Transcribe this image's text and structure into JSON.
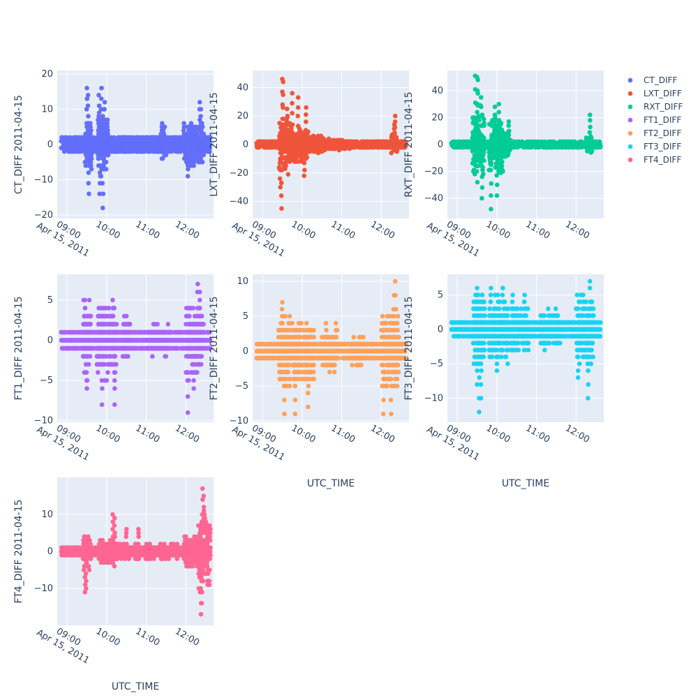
{
  "chart_data": {
    "type": "scatter",
    "x_date_label": "Apr 15, 2011",
    "x_ticks": [
      "09:00",
      "10:00",
      "11:00",
      "12:00"
    ],
    "x_tick_hours": [
      9,
      10,
      11,
      12
    ],
    "x_range_hours": [
      8.75,
      12.7
    ],
    "data_x_range_hours": [
      8.85,
      12.62
    ],
    "legend": {
      "placement": "top-right",
      "entries": [
        "CT_DIFF",
        "LXT_DIFF",
        "RXT_DIFF",
        "FT1_DIFF",
        "FT2_DIFF",
        "FT3_DIFF",
        "FT4_DIFF"
      ]
    },
    "panels": [
      {
        "series": "CT_DIFF",
        "color": "#636efa",
        "xlabel": "UTC_TIME",
        "ylabel": "CT_DIFF 2011-04-15",
        "ylim": [
          -21,
          21
        ],
        "y_ticks": [
          -20,
          -10,
          0,
          10,
          20
        ],
        "step": 1,
        "base_amp": 2,
        "highlights": [
          {
            "x": 9.5,
            "y": 16
          },
          {
            "x": 9.53,
            "y": 14
          },
          {
            "x": 9.55,
            "y": -14
          },
          {
            "x": 9.8,
            "y": 14
          },
          {
            "x": 9.82,
            "y": -14
          },
          {
            "x": 9.87,
            "y": 16
          },
          {
            "x": 9.9,
            "y": -18
          },
          {
            "x": 9.95,
            "y": 12
          },
          {
            "x": 10.02,
            "y": 7
          },
          {
            "x": 11.4,
            "y": 6
          },
          {
            "x": 11.95,
            "y": 6
          },
          {
            "x": 12.35,
            "y": 12
          },
          {
            "x": 12.38,
            "y": 10
          },
          {
            "x": 12.2,
            "y": -6
          },
          {
            "x": 12.05,
            "y": -9
          }
        ],
        "bursts": [
          {
            "x0": 9.45,
            "x1": 9.62,
            "amp": 8
          },
          {
            "x0": 9.78,
            "x1": 10.05,
            "amp": 10
          },
          {
            "x0": 10.4,
            "x1": 10.5,
            "amp": 3
          },
          {
            "x0": 11.35,
            "x1": 11.5,
            "amp": 5
          },
          {
            "x0": 11.95,
            "x1": 12.45,
            "amp": 7
          }
        ]
      },
      {
        "series": "LXT_DIFF",
        "color": "#ef553b",
        "xlabel": "UTC_TIME",
        "ylabel": "LXT_DIFF 2011-04-15",
        "ylim": [
          -52,
          52
        ],
        "y_ticks": [
          -40,
          -20,
          0,
          20,
          40
        ],
        "step": 1,
        "base_amp": 2,
        "highlights": [
          {
            "x": 9.5,
            "y": 46
          },
          {
            "x": 9.52,
            "y": 44
          },
          {
            "x": 9.45,
            "y": -30
          },
          {
            "x": 9.48,
            "y": -45
          },
          {
            "x": 9.62,
            "y": 25
          },
          {
            "x": 9.75,
            "y": 36
          },
          {
            "x": 9.9,
            "y": 33
          },
          {
            "x": 10.1,
            "y": 26
          },
          {
            "x": 10.05,
            "y": -22
          },
          {
            "x": 12.35,
            "y": 20
          },
          {
            "x": 12.33,
            "y": 14
          }
        ],
        "bursts": [
          {
            "x0": 9.42,
            "x1": 9.7,
            "amp": 22
          },
          {
            "x0": 9.7,
            "x1": 10.15,
            "amp": 15
          },
          {
            "x0": 10.15,
            "x1": 10.5,
            "amp": 7
          },
          {
            "x0": 10.5,
            "x1": 11.2,
            "amp": 4
          },
          {
            "x0": 12.25,
            "x1": 12.4,
            "amp": 8
          }
        ]
      },
      {
        "series": "RXT_DIFF",
        "color": "#00cc96",
        "xlabel": "UTC_TIME",
        "ylabel": "RXT_DIFF 2011-04-15",
        "ylim": [
          -55,
          55
        ],
        "y_ticks": [
          -40,
          -20,
          0,
          20,
          40
        ],
        "step": 1,
        "base_amp": 2,
        "highlights": [
          {
            "x": 9.45,
            "y": 51
          },
          {
            "x": 9.5,
            "y": 50
          },
          {
            "x": 9.52,
            "y": 48
          },
          {
            "x": 9.6,
            "y": 35
          },
          {
            "x": 9.62,
            "y": -40
          },
          {
            "x": 9.85,
            "y": -48
          },
          {
            "x": 9.95,
            "y": 28
          },
          {
            "x": 10.05,
            "y": 30
          },
          {
            "x": 10.0,
            "y": -38
          },
          {
            "x": 10.3,
            "y": 17
          },
          {
            "x": 12.35,
            "y": 22
          },
          {
            "x": 12.37,
            "y": -5
          }
        ],
        "bursts": [
          {
            "x0": 9.38,
            "x1": 9.68,
            "amp": 30
          },
          {
            "x0": 9.8,
            "x1": 10.15,
            "amp": 22
          },
          {
            "x0": 10.15,
            "x1": 10.35,
            "amp": 10
          },
          {
            "x0": 10.35,
            "x1": 12.2,
            "amp": 2
          },
          {
            "x0": 12.25,
            "x1": 12.4,
            "amp": 8
          }
        ]
      },
      {
        "series": "FT1_DIFF",
        "color": "#ab63fa",
        "xlabel": "UTC_TIME",
        "ylabel": "FT1_DIFF 2011-04-15",
        "ylim": [
          -10.2,
          8.2
        ],
        "y_ticks": [
          -10,
          -5,
          0,
          5
        ],
        "step": 1,
        "base_amp": 1,
        "highlights": [
          {
            "x": 9.45,
            "y": 5
          },
          {
            "x": 9.5,
            "y": -6
          },
          {
            "x": 9.8,
            "y": 4
          },
          {
            "x": 9.88,
            "y": -8
          },
          {
            "x": 10.15,
            "y": 5
          },
          {
            "x": 10.5,
            "y": 3
          },
          {
            "x": 12.3,
            "y": 7
          },
          {
            "x": 12.35,
            "y": 6
          },
          {
            "x": 12.05,
            "y": -9
          },
          {
            "x": 12.2,
            "y": -6
          },
          {
            "x": 10.2,
            "y": -8
          }
        ],
        "bursts": [
          {
            "x0": 9.4,
            "x1": 9.6,
            "amp": 5
          },
          {
            "x0": 9.75,
            "x1": 10.25,
            "amp": 5
          },
          {
            "x0": 10.4,
            "x1": 10.6,
            "amp": 3
          },
          {
            "x0": 11.0,
            "x1": 11.6,
            "amp": 2
          },
          {
            "x0": 12.0,
            "x1": 12.45,
            "amp": 5
          }
        ]
      },
      {
        "series": "FT2_DIFF",
        "color": "#ffa15a",
        "xlabel": "UTC_TIME",
        "ylabel": "FT2_DIFF 2011-04-15",
        "ylim": [
          -10.2,
          11
        ],
        "y_ticks": [
          -10,
          -5,
          0,
          5,
          10
        ],
        "step": 1,
        "base_amp": 1,
        "highlights": [
          {
            "x": 9.5,
            "y": 7
          },
          {
            "x": 9.55,
            "y": -9
          },
          {
            "x": 9.75,
            "y": 4
          },
          {
            "x": 9.82,
            "y": -9
          },
          {
            "x": 10.15,
            "y": -8
          },
          {
            "x": 10.6,
            "y": 4
          },
          {
            "x": 10.85,
            "y": 4
          },
          {
            "x": 12.35,
            "y": 10
          },
          {
            "x": 12.32,
            "y": 8
          },
          {
            "x": 12.05,
            "y": -9
          },
          {
            "x": 12.25,
            "y": -9
          }
        ],
        "bursts": [
          {
            "x0": 9.4,
            "x1": 9.7,
            "amp": 6
          },
          {
            "x0": 9.75,
            "x1": 10.3,
            "amp": 5
          },
          {
            "x0": 10.5,
            "x1": 10.9,
            "amp": 3
          },
          {
            "x0": 11.2,
            "x1": 11.6,
            "amp": 2
          },
          {
            "x0": 12.0,
            "x1": 12.45,
            "amp": 6
          }
        ]
      },
      {
        "series": "FT3_DIFF",
        "color": "#19d3f3",
        "xlabel": "UTC_TIME",
        "ylabel": "FT3_DIFF 2011-04-15",
        "ylim": [
          -13.5,
          8
        ],
        "y_ticks": [
          -10,
          -5,
          0,
          5
        ],
        "step": 1,
        "base_amp": 1,
        "highlights": [
          {
            "x": 9.5,
            "y": 6
          },
          {
            "x": 9.55,
            "y": -12
          },
          {
            "x": 9.6,
            "y": -10
          },
          {
            "x": 9.5,
            "y": -8
          },
          {
            "x": 9.85,
            "y": 6
          },
          {
            "x": 10.0,
            "y": -6
          },
          {
            "x": 10.15,
            "y": 6
          },
          {
            "x": 10.4,
            "y": 5
          },
          {
            "x": 10.7,
            "y": 5
          },
          {
            "x": 12.35,
            "y": 7
          },
          {
            "x": 12.3,
            "y": -10
          },
          {
            "x": 12.05,
            "y": -7
          }
        ],
        "bursts": [
          {
            "x0": 9.4,
            "x1": 9.7,
            "amp": 6
          },
          {
            "x0": 9.8,
            "x1": 10.3,
            "amp": 5
          },
          {
            "x0": 10.35,
            "x1": 10.8,
            "amp": 4
          },
          {
            "x0": 11.1,
            "x1": 11.6,
            "amp": 3
          },
          {
            "x0": 12.0,
            "x1": 12.45,
            "amp": 6
          }
        ]
      },
      {
        "series": "FT4_DIFF",
        "color": "#ff6692",
        "xlabel": "UTC_TIME",
        "ylabel": "FT4_DIFF 2011-04-15",
        "ylim": [
          -20,
          20
        ],
        "y_ticks": [
          -10,
          0,
          10
        ],
        "step": 1,
        "base_amp": 1,
        "highlights": [
          {
            "x": 9.45,
            "y": -11
          },
          {
            "x": 9.48,
            "y": -10
          },
          {
            "x": 10.15,
            "y": 10
          },
          {
            "x": 10.2,
            "y": 9
          },
          {
            "x": 10.5,
            "y": 6
          },
          {
            "x": 10.8,
            "y": 6
          },
          {
            "x": 12.42,
            "y": 17
          },
          {
            "x": 12.45,
            "y": 15
          },
          {
            "x": 12.38,
            "y": -17
          },
          {
            "x": 12.4,
            "y": -14
          },
          {
            "x": 12.6,
            "y": 7
          }
        ],
        "bursts": [
          {
            "x0": 9.4,
            "x1": 9.6,
            "amp": 5
          },
          {
            "x0": 9.8,
            "x1": 10.3,
            "amp": 4
          },
          {
            "x0": 10.3,
            "x1": 11.8,
            "amp": 2
          },
          {
            "x0": 11.95,
            "x1": 12.3,
            "amp": 5
          },
          {
            "x0": 12.3,
            "x1": 12.62,
            "amp": 12
          }
        ]
      }
    ]
  }
}
